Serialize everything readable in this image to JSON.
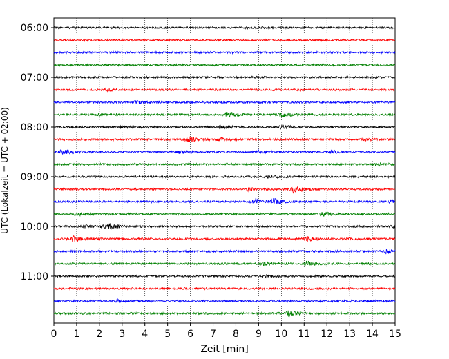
{
  "chart_data": {
    "type": "line",
    "title": "",
    "xlabel": "Zeit  [min]",
    "ylabel": "UTC (Lokalzeit = UTC + 02:00)",
    "xlim": [
      0,
      15
    ],
    "x_ticks": [
      "0",
      "1",
      "2",
      "3",
      "4",
      "5",
      "6",
      "7",
      "8",
      "9",
      "10",
      "11",
      "12",
      "13",
      "14",
      "15"
    ],
    "y_tick_labels": [
      "06:00",
      "07:00",
      "08:00",
      "09:00",
      "10:00",
      "11:00"
    ],
    "grid": "vertical dotted",
    "trace_colors": [
      "#000000",
      "#ff0000",
      "#0000ff",
      "#008000"
    ],
    "series": [
      {
        "start": "06:00",
        "color": "#000000",
        "bursts": []
      },
      {
        "start": "06:15",
        "color": "#ff0000",
        "bursts": []
      },
      {
        "start": "06:30",
        "color": "#0000ff",
        "bursts": []
      },
      {
        "start": "06:45",
        "color": "#008000",
        "bursts": []
      },
      {
        "start": "07:00",
        "color": "#000000",
        "bursts": []
      },
      {
        "start": "07:15",
        "color": "#ff0000",
        "bursts": [
          {
            "t": 2.3,
            "a": 1.6
          }
        ]
      },
      {
        "start": "07:30",
        "color": "#0000ff",
        "bursts": [
          {
            "t": 3.6,
            "a": 1.6
          }
        ]
      },
      {
        "start": "07:45",
        "color": "#008000",
        "bursts": [
          {
            "t": 1.9,
            "a": 1.5
          },
          {
            "t": 7.6,
            "a": 3.5
          },
          {
            "t": 10.0,
            "a": 3.5
          }
        ]
      },
      {
        "start": "08:00",
        "color": "#000000",
        "bursts": [
          {
            "t": 2.9,
            "a": 1.6
          },
          {
            "t": 7.3,
            "a": 2.2
          },
          {
            "t": 10.0,
            "a": 3.0
          }
        ]
      },
      {
        "start": "08:15",
        "color": "#ff0000",
        "bursts": [
          {
            "t": 5.9,
            "a": 4.0
          },
          {
            "t": 7.3,
            "a": 2.3
          },
          {
            "t": 13.7,
            "a": 1.5
          }
        ]
      },
      {
        "start": "08:30",
        "color": "#0000ff",
        "bursts": [
          {
            "t": 0.35,
            "a": 4.0
          },
          {
            "t": 5.5,
            "a": 2.2
          },
          {
            "t": 9.0,
            "a": 1.8
          },
          {
            "t": 12.2,
            "a": 1.8
          }
        ]
      },
      {
        "start": "08:45",
        "color": "#008000",
        "bursts": [
          {
            "t": 14.2,
            "a": 1.5
          }
        ]
      },
      {
        "start": "09:00",
        "color": "#000000",
        "bursts": [
          {
            "t": 9.4,
            "a": 1.5
          }
        ]
      },
      {
        "start": "09:15",
        "color": "#ff0000",
        "bursts": [
          {
            "t": 8.5,
            "a": 2.0
          },
          {
            "t": 10.5,
            "a": 5.5
          }
        ]
      },
      {
        "start": "09:30",
        "color": "#0000ff",
        "bursts": [
          {
            "t": 8.8,
            "a": 3.5
          },
          {
            "t": 9.6,
            "a": 4.5
          },
          {
            "t": 14.8,
            "a": 2.0
          }
        ]
      },
      {
        "start": "09:45",
        "color": "#008000",
        "bursts": [
          {
            "t": 1.0,
            "a": 2.0
          },
          {
            "t": 11.8,
            "a": 3.0
          }
        ]
      },
      {
        "start": "10:00",
        "color": "#000000",
        "bursts": [
          {
            "t": 2.3,
            "a": 6.0
          },
          {
            "t": 1.3,
            "a": 1.8
          },
          {
            "t": 14.9,
            "a": 1.5
          }
        ]
      },
      {
        "start": "10:15",
        "color": "#ff0000",
        "bursts": [
          {
            "t": 0.8,
            "a": 5.0
          },
          {
            "t": 11.1,
            "a": 3.2
          },
          {
            "t": 13.0,
            "a": 1.5
          }
        ]
      },
      {
        "start": "10:30",
        "color": "#0000ff",
        "bursts": [
          {
            "t": 14.6,
            "a": 3.0
          }
        ]
      },
      {
        "start": "10:45",
        "color": "#008000",
        "bursts": [
          {
            "t": 9.2,
            "a": 2.2
          },
          {
            "t": 11.1,
            "a": 2.8
          }
        ]
      },
      {
        "start": "11:00",
        "color": "#000000",
        "bursts": [
          {
            "t": 9.3,
            "a": 1.5
          }
        ]
      },
      {
        "start": "11:15",
        "color": "#ff0000",
        "bursts": []
      },
      {
        "start": "11:30",
        "color": "#0000ff",
        "bursts": [
          {
            "t": 2.8,
            "a": 1.5
          }
        ]
      },
      {
        "start": "11:45",
        "color": "#008000",
        "bursts": [
          {
            "t": 10.3,
            "a": 4.0
          }
        ]
      }
    ]
  }
}
